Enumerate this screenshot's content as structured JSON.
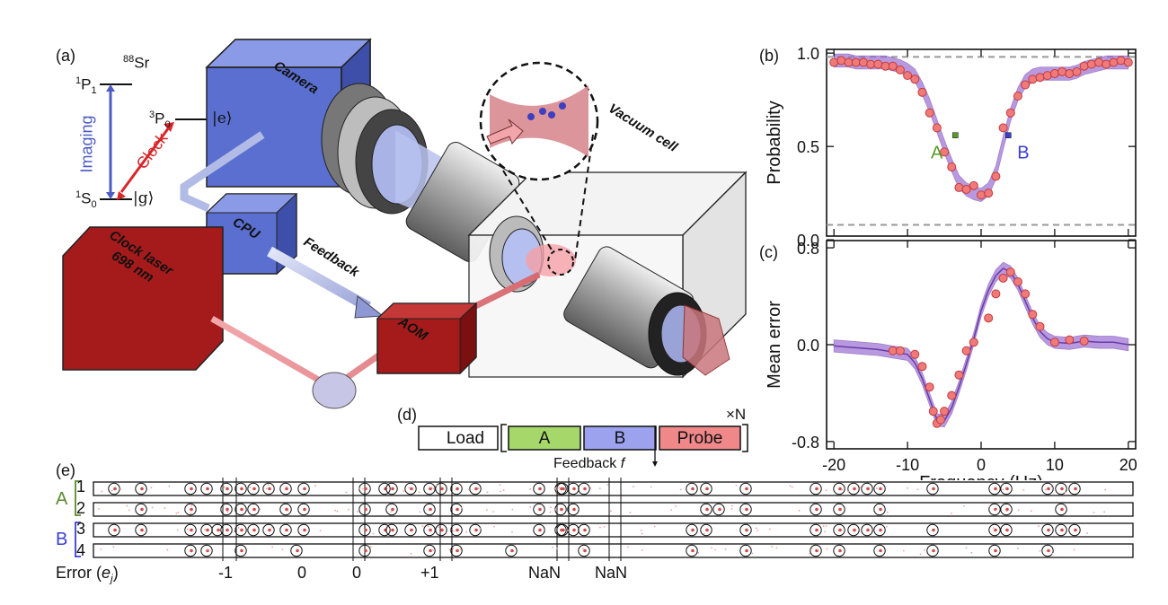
{
  "figure": {
    "panel_a": {
      "label": "(a)",
      "isotope_mass": "88",
      "isotope": "Sr",
      "state_1p1": "P",
      "state_1p1_sup": "1",
      "state_1p1_sub": "1",
      "state_3p0": "P",
      "state_3p0_sup": "3",
      "state_3p0_sub": "0",
      "state_1s0": "S",
      "state_1s0_sup": "1",
      "state_1s0_sub": "0",
      "ket_e": "|e⟩",
      "ket_g": "|g⟩",
      "imaging_label": "Imaging",
      "clock_label": "Clock",
      "camera_label": "Camera",
      "cpu_label": "CPU",
      "feedback_label": "Feedback",
      "laser_label_1": "Clock laser",
      "laser_label_2": "698 nm",
      "aom_label": "AOM",
      "vacuum_label": "Vacuum cell",
      "colors": {
        "blue_box": "#5a6fcf",
        "red_box": "#a51b1b",
        "arrow_blue": "#4d5bc4",
        "arrow_red": "#d8262a"
      }
    },
    "panel_d": {
      "label": "(d)",
      "load": "Load",
      "a": "A",
      "b": "B",
      "probe": "Probe",
      "repeat": "×N",
      "feedback": "Feedback",
      "feedback_var": "f",
      "colors": {
        "a": "#a6d76a",
        "b": "#9da2ee",
        "probe": "#f0888a"
      }
    },
    "panel_e": {
      "label": "(e)",
      "group_a": "A",
      "group_b": "B",
      "rows": [
        "1",
        "2",
        "3",
        "4"
      ],
      "error_label": "Error (",
      "error_var": "e",
      "error_sub": "j",
      "error_close": ")",
      "error_values": [
        "-1",
        "0",
        "0",
        "+1",
        "NaN",
        "NaN"
      ]
    }
  },
  "chart_data": [
    {
      "type": "scatter",
      "panel": "(b)",
      "title": "",
      "xlabel": "",
      "ylabel": "Probability",
      "xlim": [
        -21,
        21
      ],
      "ylim": [
        0.02,
        1.02
      ],
      "yticks": [
        "0.0",
        "0.5",
        "1.0"
      ],
      "ytick_values": [
        0.0,
        0.5,
        1.0
      ],
      "hlines": [
        0.98,
        0.08
      ],
      "x": [
        -20,
        -19,
        -18,
        -17,
        -16,
        -15,
        -14,
        -13,
        -12,
        -11,
        -10,
        -9,
        -8,
        -7,
        -6,
        -5,
        -4,
        -3,
        -2,
        -1,
        0,
        1,
        2,
        3,
        4,
        5,
        6,
        7,
        8,
        9,
        10,
        11,
        12,
        13,
        14,
        15,
        16,
        17,
        18,
        19,
        20
      ],
      "y": [
        0.95,
        0.96,
        0.95,
        0.95,
        0.95,
        0.94,
        0.94,
        0.93,
        0.93,
        0.91,
        0.88,
        0.86,
        0.79,
        0.68,
        0.6,
        0.47,
        0.39,
        0.28,
        0.27,
        0.29,
        0.24,
        0.25,
        0.34,
        0.6,
        0.68,
        0.77,
        0.83,
        0.86,
        0.87,
        0.88,
        0.89,
        0.9,
        0.89,
        0.9,
        0.93,
        0.94,
        0.95,
        0.94,
        0.95,
        0.96,
        0.95
      ],
      "band_center": [
        0.96,
        0.96,
        0.96,
        0.95,
        0.95,
        0.95,
        0.95,
        0.95,
        0.94,
        0.93,
        0.91,
        0.88,
        0.81,
        0.72,
        0.61,
        0.5,
        0.4,
        0.31,
        0.27,
        0.25,
        0.24,
        0.27,
        0.36,
        0.52,
        0.67,
        0.78,
        0.85,
        0.88,
        0.89,
        0.89,
        0.89,
        0.89,
        0.89,
        0.9,
        0.92,
        0.93,
        0.94,
        0.95,
        0.95,
        0.95,
        0.95
      ],
      "band_half_width": 0.035,
      "markers": [
        {
          "label": "A",
          "x": -3.5,
          "y": 0.56,
          "color": "#5a9a2a"
        },
        {
          "label": "B",
          "x": 3.7,
          "y": 0.56,
          "color": "#3b3fd0"
        }
      ],
      "colors": {
        "points": "#f07a7a",
        "points_edge": "#c23c3c",
        "band": "#9b6fd2",
        "dashed": "#999999"
      }
    },
    {
      "type": "scatter",
      "panel": "(c)",
      "title": "",
      "xlabel": "Frequency (Hz)",
      "ylabel": "Mean error",
      "xlim": [
        -21,
        21
      ],
      "ylim": [
        -0.86,
        0.86
      ],
      "yticks": [
        "-0.8",
        "0.0",
        "0.8"
      ],
      "ytick_values": [
        -0.8,
        0.0,
        0.8
      ],
      "xticks": [
        "-20",
        "-10",
        "0",
        "10",
        "20"
      ],
      "xtick_values": [
        -20,
        -10,
        0,
        10,
        20
      ],
      "x": [
        -12,
        -11,
        -9,
        -8,
        -7,
        -6.5,
        -6,
        -5.5,
        -5,
        -4,
        -3,
        -2,
        -1,
        1,
        2,
        3,
        4,
        5,
        6,
        7,
        8,
        10,
        12,
        14
      ],
      "y": [
        -0.05,
        -0.05,
        -0.08,
        -0.18,
        -0.35,
        -0.55,
        -0.65,
        -0.62,
        -0.55,
        -0.42,
        -0.25,
        -0.05,
        0.02,
        0.22,
        0.42,
        0.55,
        0.6,
        0.52,
        0.42,
        0.25,
        0.15,
        0.02,
        0.04,
        0.03
      ],
      "curve_x": [
        -20,
        -18,
        -16,
        -14,
        -12,
        -10,
        -9,
        -8,
        -7,
        -6,
        -5,
        -4,
        -3,
        -2,
        -1,
        0,
        1,
        2,
        3,
        4,
        5,
        6,
        7,
        8,
        9,
        10,
        12,
        14,
        16,
        18,
        20
      ],
      "curve_y": [
        -0.01,
        -0.02,
        -0.03,
        -0.04,
        -0.06,
        -0.08,
        -0.15,
        -0.28,
        -0.45,
        -0.62,
        -0.63,
        -0.52,
        -0.35,
        -0.16,
        0.05,
        0.28,
        0.45,
        0.57,
        0.63,
        0.6,
        0.5,
        0.36,
        0.22,
        0.11,
        0.05,
        0.02,
        0.01,
        0.03,
        0.02,
        0.02,
        0.0
      ],
      "band_half_width": 0.05,
      "colors": {
        "points": "#f07a7a",
        "points_edge": "#c23c3c",
        "band": "#9b6fd2",
        "line": "#6a3aa8"
      }
    }
  ]
}
